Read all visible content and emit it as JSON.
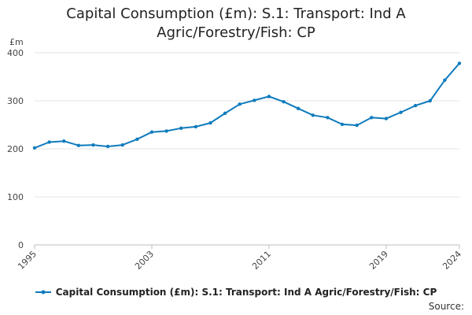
{
  "chart_data": {
    "type": "line",
    "title_lines": [
      "Capital Consumption (£m): S.1: Transport: Ind A",
      "Agric/Forestry/Fish: CP"
    ],
    "unit_label": "£m",
    "xlabel": "",
    "ylabel": "£m",
    "ylim": [
      0,
      400
    ],
    "yticks": [
      0,
      100,
      200,
      300,
      400
    ],
    "xlim": [
      1995,
      2024
    ],
    "xticks": [
      1995,
      2003,
      2011,
      2019,
      2024
    ],
    "grid": true,
    "legend_position": "bottom",
    "series": [
      {
        "name": "Capital Consumption (£m): S.1: Transport: Ind A Agric/Forestry/Fish: CP",
        "color": "#0f7bbd",
        "x": [
          1995,
          1996,
          1997,
          1998,
          1999,
          2000,
          2001,
          2002,
          2003,
          2004,
          2005,
          2006,
          2007,
          2008,
          2009,
          2010,
          2011,
          2012,
          2013,
          2014,
          2015,
          2016,
          2017,
          2018,
          2019,
          2020,
          2021,
          2022,
          2023,
          2024
        ],
        "values": [
          202,
          214,
          216,
          207,
          208,
          205,
          208,
          220,
          235,
          237,
          243,
          246,
          254,
          274,
          293,
          301,
          309,
          298,
          284,
          270,
          265,
          251,
          249,
          265,
          263,
          276,
          290,
          300,
          343,
          378
        ]
      }
    ]
  },
  "source_label": "Source:"
}
